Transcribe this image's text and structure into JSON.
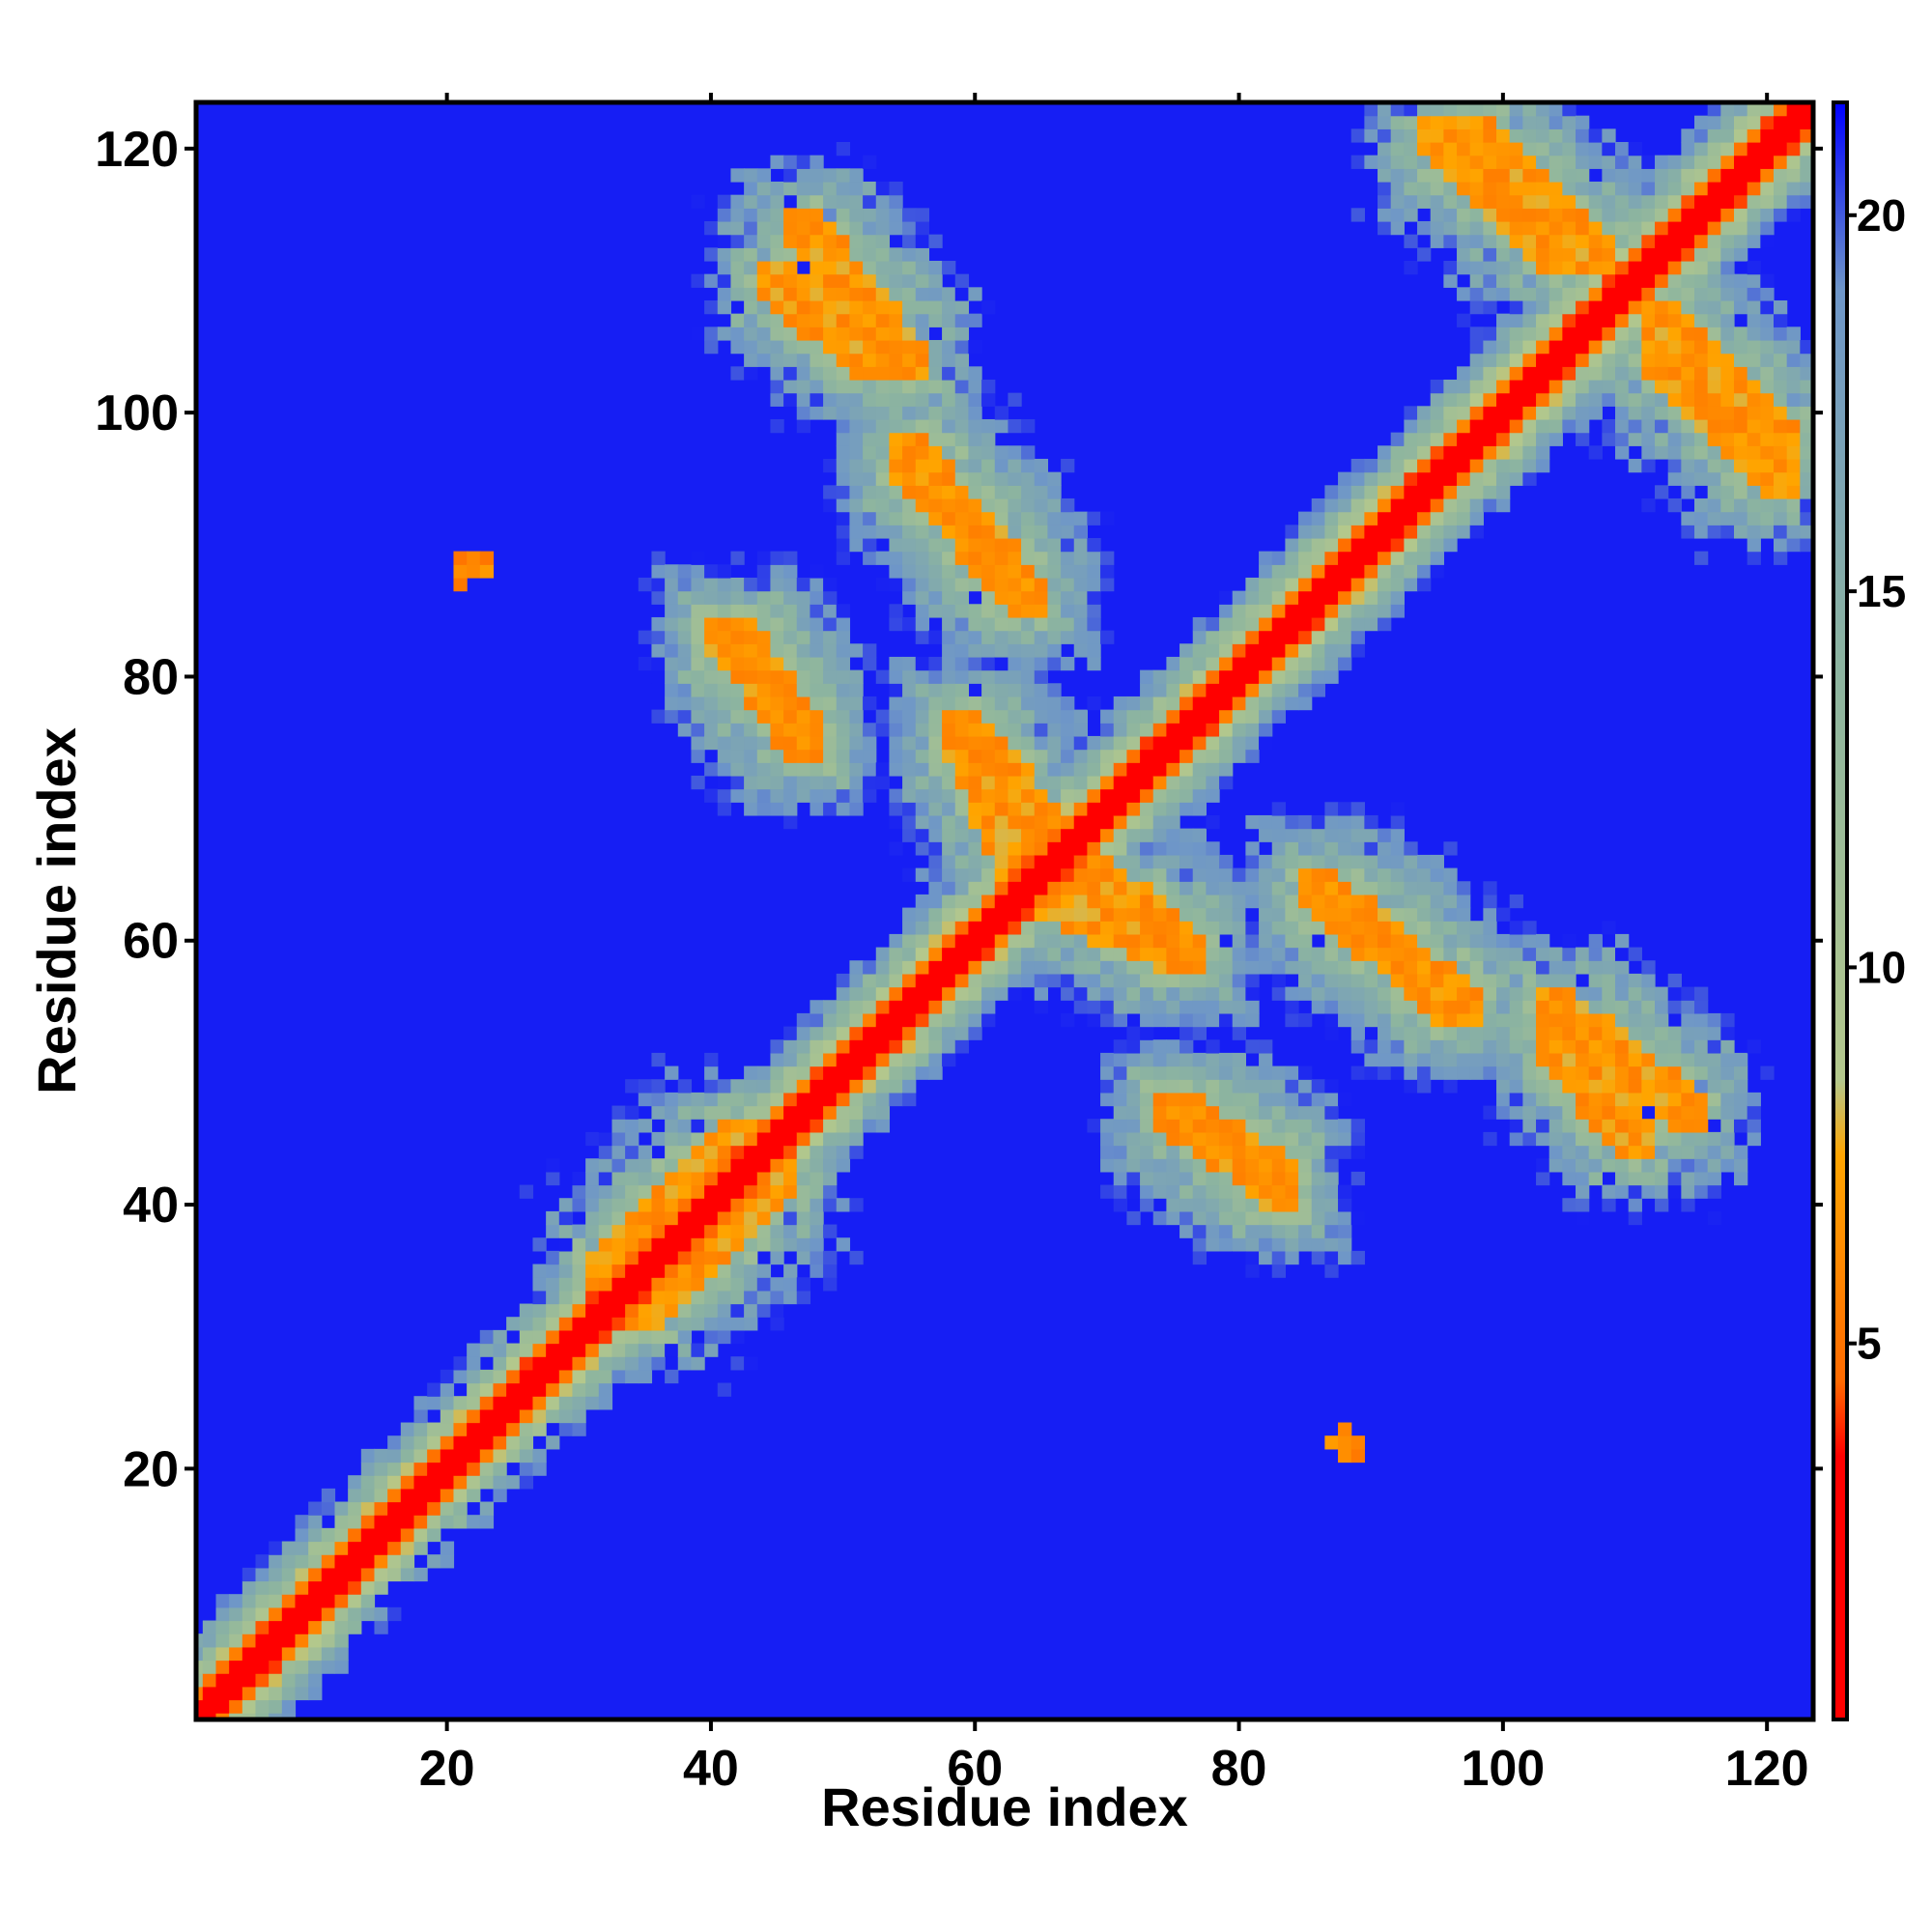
{
  "chart_data": {
    "type": "heatmap",
    "title": "",
    "xlabel": "Residue index",
    "ylabel": "Residue index",
    "xlim": [
      1,
      123
    ],
    "ylim": [
      1,
      123
    ],
    "x_ticks": [
      20,
      40,
      60,
      80,
      100,
      120
    ],
    "y_ticks": [
      20,
      40,
      60,
      80,
      100,
      120
    ],
    "x_tick_labels": [
      "20",
      "40",
      "60",
      "80",
      "100",
      "120"
    ],
    "y_tick_labels": [
      "20",
      "40",
      "60",
      "80",
      "100",
      "120"
    ],
    "colorbar": {
      "range": [
        0,
        21.5
      ],
      "ticks": [
        5,
        10,
        15,
        20
      ],
      "tick_labels": [
        "5",
        "10",
        "15",
        "20"
      ],
      "stops": [
        {
          "value": 0,
          "color": "#ff0000"
        },
        {
          "value": 3.5,
          "color": "#ff0000"
        },
        {
          "value": 4.5,
          "color": "#ff6a00"
        },
        {
          "value": 7.5,
          "color": "#ffa500"
        },
        {
          "value": 8.5,
          "color": "#b4c88c"
        },
        {
          "value": 14,
          "color": "#8cb4a0"
        },
        {
          "value": 19,
          "color": "#6e96c8"
        },
        {
          "value": 21.5,
          "color": "#0000ff"
        }
      ]
    },
    "background_value": 21,
    "grid": false,
    "contact_features": [
      {
        "kind": "diagonal",
        "from": 1,
        "to": 123
      },
      {
        "kind": "antiparallel",
        "i": [
          47,
          55
        ],
        "j": [
          114,
          104
        ],
        "note": "hairpin band upper-left of diagonal"
      },
      {
        "kind": "antiparallel",
        "i": [
          55,
          64
        ],
        "j": [
          97,
          86
        ]
      },
      {
        "kind": "antiparallel",
        "i": [
          41,
          47
        ],
        "j": [
          83,
          76
        ]
      },
      {
        "kind": "antiparallel",
        "i": [
          59,
          67
        ],
        "j": [
          76,
          67
        ]
      },
      {
        "kind": "antiparallel",
        "i": [
          66,
          76
        ],
        "j": [
          63,
          59
        ]
      },
      {
        "kind": "antiparallel",
        "i": [
          86,
          96
        ],
        "j": [
          64,
          55
        ]
      },
      {
        "kind": "antiparallel",
        "i": [
          98,
          107
        ],
        "j": [
          121,
          112
        ]
      },
      {
        "kind": "antiparallel",
        "i": [
          112,
          121
        ],
        "j": [
          104,
          95
        ]
      },
      {
        "kind": "antiparallel",
        "i": [
          104,
          110
        ],
        "j": [
          52,
          45
        ]
      },
      {
        "kind": "antiparallel",
        "i": [
          75,
          83
        ],
        "j": [
          47,
          42
        ]
      },
      {
        "kind": "parallel",
        "i": [
          32,
          42
        ],
        "j": [
          35,
          45
        ],
        "note": "broad band alongside diagonal"
      },
      {
        "kind": "spot",
        "i": [
          21,
          23
        ],
        "j": [
          87,
          89
        ]
      },
      {
        "kind": "spot",
        "i": [
          87,
          89
        ],
        "j": [
          21,
          23
        ]
      }
    ]
  }
}
